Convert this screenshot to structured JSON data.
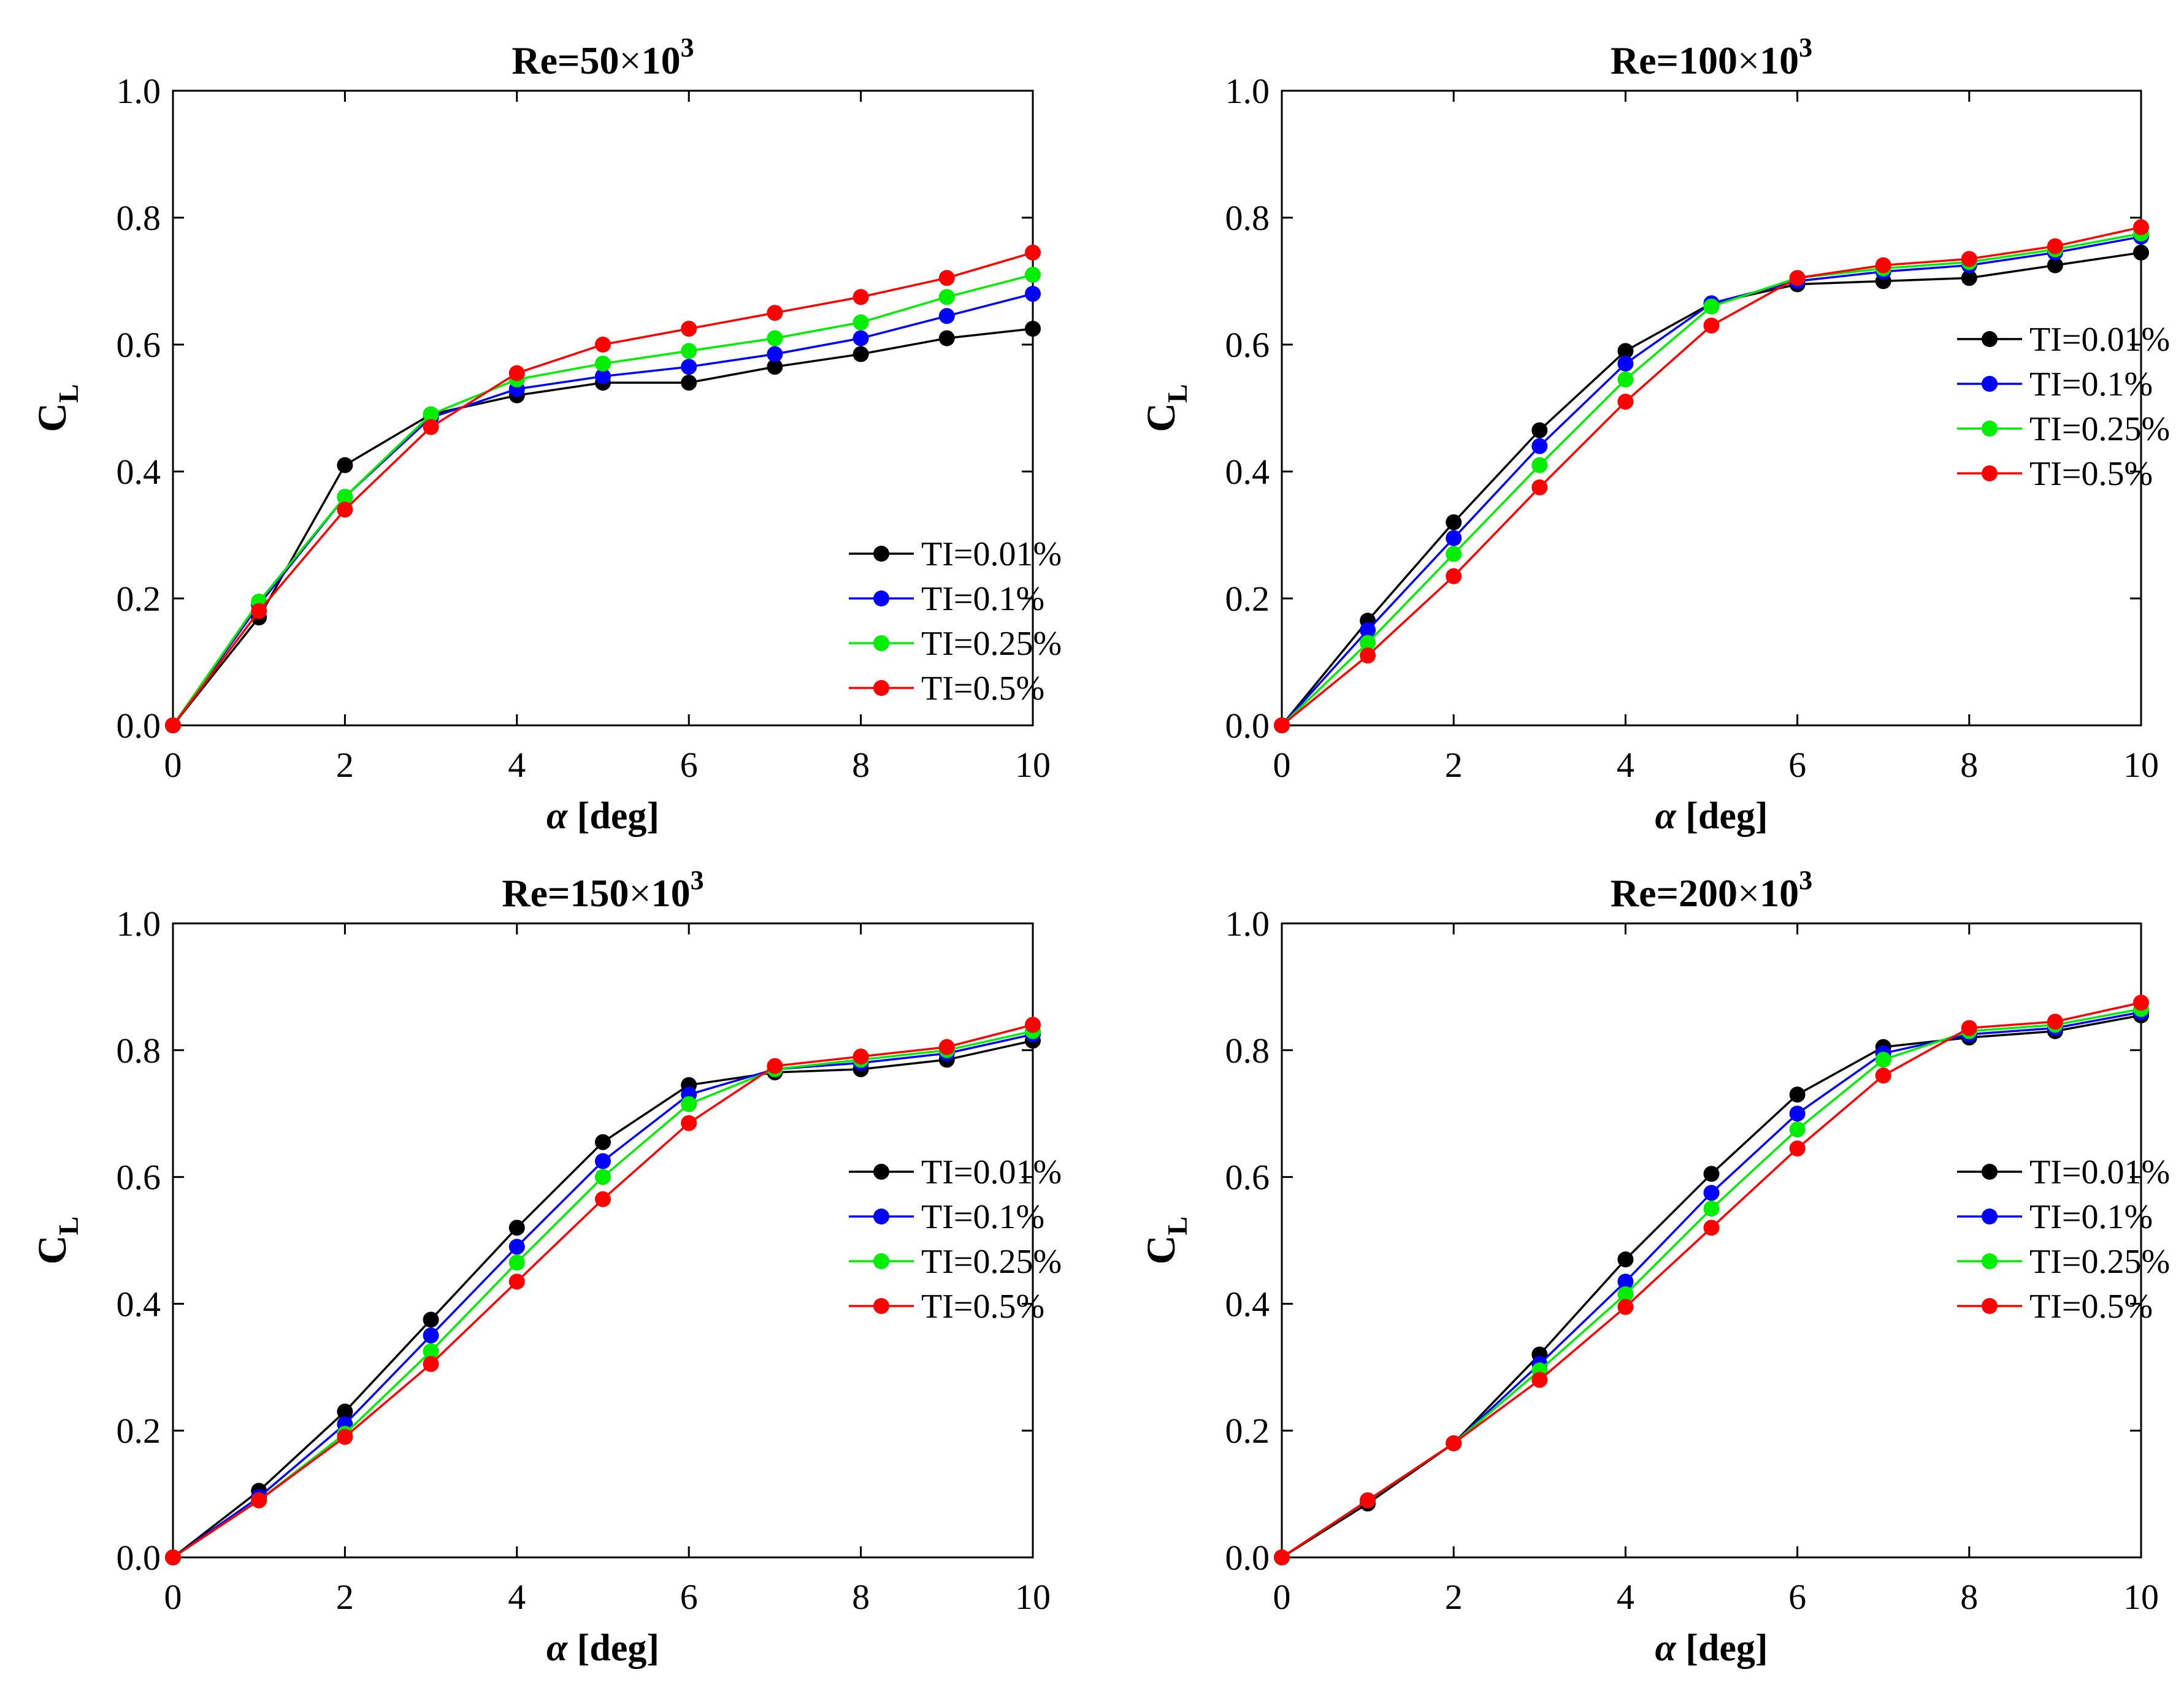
{
  "figure": {
    "series_names": [
      "TI=0.01%",
      "TI=0.1%",
      "TI=0.25%",
      "TI=0.5%"
    ],
    "series_colors": [
      "#000000",
      "#0000ff",
      "#00ee00",
      "#ff0000"
    ]
  },
  "chart_data": [
    {
      "type": "line",
      "title_prefix": "Re=50",
      "title_times": "×",
      "title_base": "10",
      "title_exp": "3",
      "xlabel_symbol": "α",
      "xlabel_rest": " [deg]",
      "ylabel_main": "C",
      "ylabel_sub": "L",
      "xlim": [
        0,
        10
      ],
      "ylim": [
        0,
        1.0
      ],
      "xticks": [
        "0",
        "2",
        "4",
        "6",
        "8",
        "10"
      ],
      "yticks": [
        "0.0",
        "0.2",
        "0.4",
        "0.6",
        "0.8",
        "1.0"
      ],
      "legend_position": "lower-right",
      "x": [
        0,
        1,
        2,
        3,
        4,
        5,
        6,
        7,
        8,
        9,
        10
      ],
      "series": [
        {
          "name": "TI=0.01%",
          "values": [
            0,
            0.17,
            0.41,
            0.49,
            0.52,
            0.54,
            0.54,
            0.565,
            0.585,
            0.61,
            0.625
          ]
        },
        {
          "name": "TI=0.1%",
          "values": [
            0,
            0.19,
            0.36,
            0.485,
            0.53,
            0.55,
            0.565,
            0.585,
            0.61,
            0.645,
            0.68
          ]
        },
        {
          "name": "TI=0.25%",
          "values": [
            0,
            0.195,
            0.36,
            0.49,
            0.545,
            0.57,
            0.59,
            0.61,
            0.635,
            0.675,
            0.71
          ]
        },
        {
          "name": "TI=0.5%",
          "values": [
            0,
            0.18,
            0.34,
            0.47,
            0.555,
            0.6,
            0.625,
            0.65,
            0.675,
            0.705,
            0.745
          ]
        }
      ]
    },
    {
      "type": "line",
      "title_prefix": "Re=100",
      "title_times": "×",
      "title_base": "10",
      "title_exp": "3",
      "xlabel_symbol": "α",
      "xlabel_rest": " [deg]",
      "ylabel_main": "C",
      "ylabel_sub": "L",
      "xlim": [
        0,
        10
      ],
      "ylim": [
        0,
        1.0
      ],
      "xticks": [
        "0",
        "2",
        "4",
        "6",
        "8",
        "10"
      ],
      "yticks": [
        "0.0",
        "0.2",
        "0.4",
        "0.6",
        "0.8",
        "1.0"
      ],
      "legend_position": "center-right",
      "x": [
        0,
        1,
        2,
        3,
        4,
        5,
        6,
        7,
        8,
        9,
        10
      ],
      "series": [
        {
          "name": "TI=0.01%",
          "values": [
            0,
            0.165,
            0.32,
            0.465,
            0.59,
            0.665,
            0.695,
            0.7,
            0.705,
            0.725,
            0.745
          ]
        },
        {
          "name": "TI=0.1%",
          "values": [
            0,
            0.15,
            0.295,
            0.44,
            0.57,
            0.665,
            0.7,
            0.715,
            0.725,
            0.745,
            0.77
          ]
        },
        {
          "name": "TI=0.25%",
          "values": [
            0,
            0.13,
            0.27,
            0.41,
            0.545,
            0.66,
            0.705,
            0.72,
            0.73,
            0.75,
            0.775
          ]
        },
        {
          "name": "TI=0.5%",
          "values": [
            0,
            0.11,
            0.235,
            0.375,
            0.51,
            0.63,
            0.705,
            0.725,
            0.735,
            0.755,
            0.785
          ]
        }
      ]
    },
    {
      "type": "line",
      "title_prefix": "Re=150",
      "title_times": "×",
      "title_base": "10",
      "title_exp": "3",
      "xlabel_symbol": "α",
      "xlabel_rest": " [deg]",
      "ylabel_main": "C",
      "ylabel_sub": "L",
      "xlim": [
        0,
        10
      ],
      "ylim": [
        0,
        1.0
      ],
      "xticks": [
        "0",
        "2",
        "4",
        "6",
        "8",
        "10"
      ],
      "yticks": [
        "0.0",
        "0.2",
        "0.4",
        "0.6",
        "0.8",
        "1.0"
      ],
      "legend_position": "center-right",
      "x": [
        0,
        1,
        2,
        3,
        4,
        5,
        6,
        7,
        8,
        9,
        10
      ],
      "series": [
        {
          "name": "TI=0.01%",
          "values": [
            0,
            0.105,
            0.23,
            0.375,
            0.52,
            0.655,
            0.745,
            0.765,
            0.77,
            0.785,
            0.815
          ]
        },
        {
          "name": "TI=0.1%",
          "values": [
            0,
            0.095,
            0.21,
            0.35,
            0.49,
            0.625,
            0.73,
            0.77,
            0.78,
            0.795,
            0.825
          ]
        },
        {
          "name": "TI=0.25%",
          "values": [
            0,
            0.09,
            0.195,
            0.325,
            0.465,
            0.6,
            0.715,
            0.77,
            0.785,
            0.8,
            0.83
          ]
        },
        {
          "name": "TI=0.5%",
          "values": [
            0,
            0.09,
            0.19,
            0.305,
            0.435,
            0.565,
            0.685,
            0.775,
            0.79,
            0.805,
            0.84
          ]
        }
      ]
    },
    {
      "type": "line",
      "title_prefix": "Re=200",
      "title_times": "×",
      "title_base": "10",
      "title_exp": "3",
      "xlabel_symbol": "α",
      "xlabel_rest": " [deg]",
      "ylabel_main": "C",
      "ylabel_sub": "L",
      "xlim": [
        0,
        10
      ],
      "ylim": [
        0,
        1.0
      ],
      "xticks": [
        "0",
        "2",
        "4",
        "6",
        "8",
        "10"
      ],
      "yticks": [
        "0.0",
        "0.2",
        "0.4",
        "0.6",
        "0.8",
        "1.0"
      ],
      "legend_position": "center-right",
      "x": [
        0,
        1,
        2,
        3,
        4,
        5,
        6,
        7,
        8,
        9,
        10
      ],
      "series": [
        {
          "name": "TI=0.01%",
          "values": [
            0,
            0.085,
            0.18,
            0.32,
            0.47,
            0.605,
            0.73,
            0.805,
            0.82,
            0.83,
            0.855
          ]
        },
        {
          "name": "TI=0.1%",
          "values": [
            0,
            0.09,
            0.18,
            0.305,
            0.435,
            0.575,
            0.7,
            0.795,
            0.825,
            0.835,
            0.86
          ]
        },
        {
          "name": "TI=0.25%",
          "values": [
            0,
            0.09,
            0.18,
            0.295,
            0.415,
            0.55,
            0.675,
            0.785,
            0.83,
            0.84,
            0.865
          ]
        },
        {
          "name": "TI=0.5%",
          "values": [
            0,
            0.09,
            0.18,
            0.28,
            0.395,
            0.52,
            0.645,
            0.76,
            0.835,
            0.845,
            0.875
          ]
        }
      ]
    }
  ]
}
